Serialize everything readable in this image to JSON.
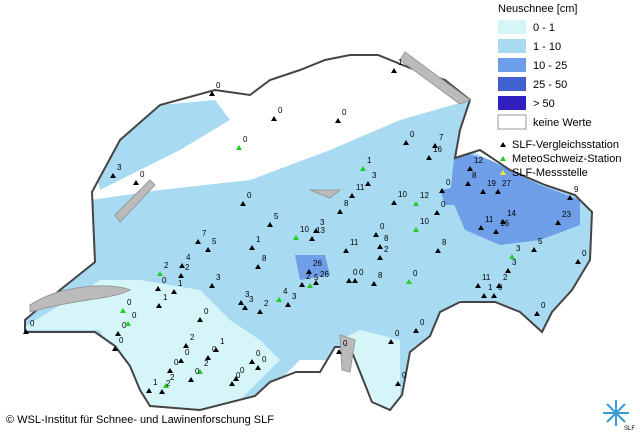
{
  "legend": {
    "title": "Neuschnee [cm]",
    "classes": [
      "0 - 1",
      "1 - 10",
      "10 - 25",
      "25 - 50",
      "> 50",
      "keine Werte"
    ],
    "station_types": [
      "SLF-Vergleichsstation",
      "MeteoSchweiz-Station",
      "SLF-Messstelle"
    ]
  },
  "stations": [
    1,
    0,
    0,
    0,
    0,
    0,
    7,
    16,
    3,
    0,
    1,
    3,
    11,
    8,
    0,
    5,
    10,
    12,
    12,
    8,
    19,
    27,
    0,
    0,
    10,
    11,
    14,
    16,
    23,
    9,
    3,
    10,
    13,
    11,
    7,
    5,
    4,
    2,
    2,
    3,
    8,
    1,
    26,
    26,
    2,
    5,
    0,
    0,
    2,
    8,
    0,
    8,
    0,
    8,
    11,
    3,
    0,
    1,
    2,
    3,
    5,
    0,
    0,
    0,
    1,
    1,
    0,
    0,
    0,
    0,
    3,
    3,
    2,
    4,
    3,
    1,
    2,
    0,
    0,
    0,
    2,
    0,
    0,
    0,
    0,
    0,
    1,
    2,
    2,
    0,
    0,
    0,
    0,
    0,
    0
  ],
  "copyright": "© WSL-Institut für Schnee- und Lawinenforschung SLF",
  "logo": "SLF"
}
